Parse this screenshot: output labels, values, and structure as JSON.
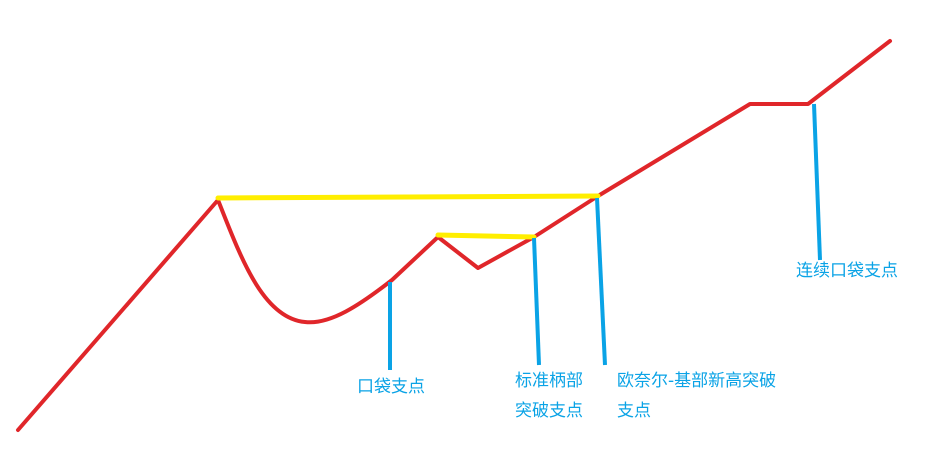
{
  "colors": {
    "price_line": "#e0262a",
    "resistance_line": "#ffee00",
    "pivot_marker": "#0aa3e6",
    "label_text": "#0aa3e6",
    "background": "#ffffff"
  },
  "labels": {
    "pocket_pivot": "口袋支点",
    "handle_breakout_line1": "标准柄部",
    "handle_breakout_line2": "突破支点",
    "oneil_breakout_line1": "欧奈尔-基部新高突破",
    "oneil_breakout_line2": "支点",
    "continuation_pocket_pivot": "连续口袋支点"
  }
}
